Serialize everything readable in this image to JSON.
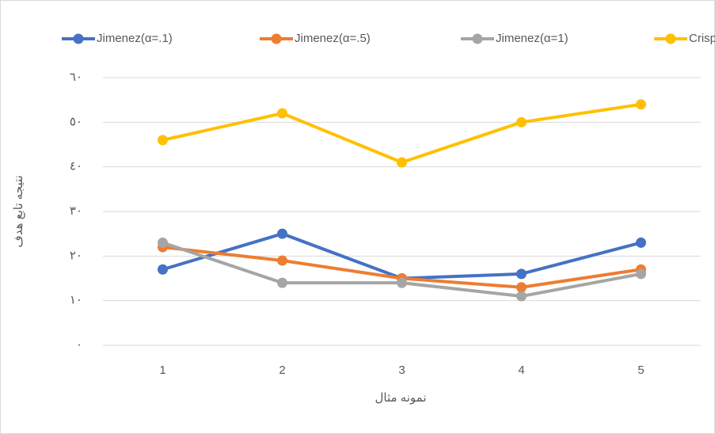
{
  "chart_data": {
    "type": "line",
    "x_label": "نمونه مثال",
    "y_label": "نتیجه تابع هدف",
    "categories": [
      "1",
      "2",
      "3",
      "4",
      "5"
    ],
    "series": [
      {
        "name": "Jimenez(α=.1)",
        "color": "#4472c4",
        "values": [
          17,
          25,
          15,
          16,
          23
        ]
      },
      {
        "name": "Jimenez(α=.5)",
        "color": "#ed7d31",
        "values": [
          22,
          19,
          15,
          13,
          17
        ]
      },
      {
        "name": "Jimenez(α=1)",
        "color": "#a5a5a5",
        "values": [
          23,
          14,
          14,
          11,
          16
        ]
      },
      {
        "name": "Crisp",
        "color": "#ffc000",
        "values": [
          46,
          52,
          41,
          50,
          54
        ]
      }
    ],
    "ylim": [
      0,
      60
    ],
    "yticks": [
      {
        "value": 0,
        "label": "٠"
      },
      {
        "value": 10,
        "label": "١٠"
      },
      {
        "value": 20,
        "label": "٢٠"
      },
      {
        "value": 30,
        "label": "٣٠"
      },
      {
        "value": 40,
        "label": "٤٠"
      },
      {
        "value": 50,
        "label": "٥٠"
      },
      {
        "value": 60,
        "label": "٦٠"
      }
    ],
    "grid": true,
    "legend": "top"
  }
}
